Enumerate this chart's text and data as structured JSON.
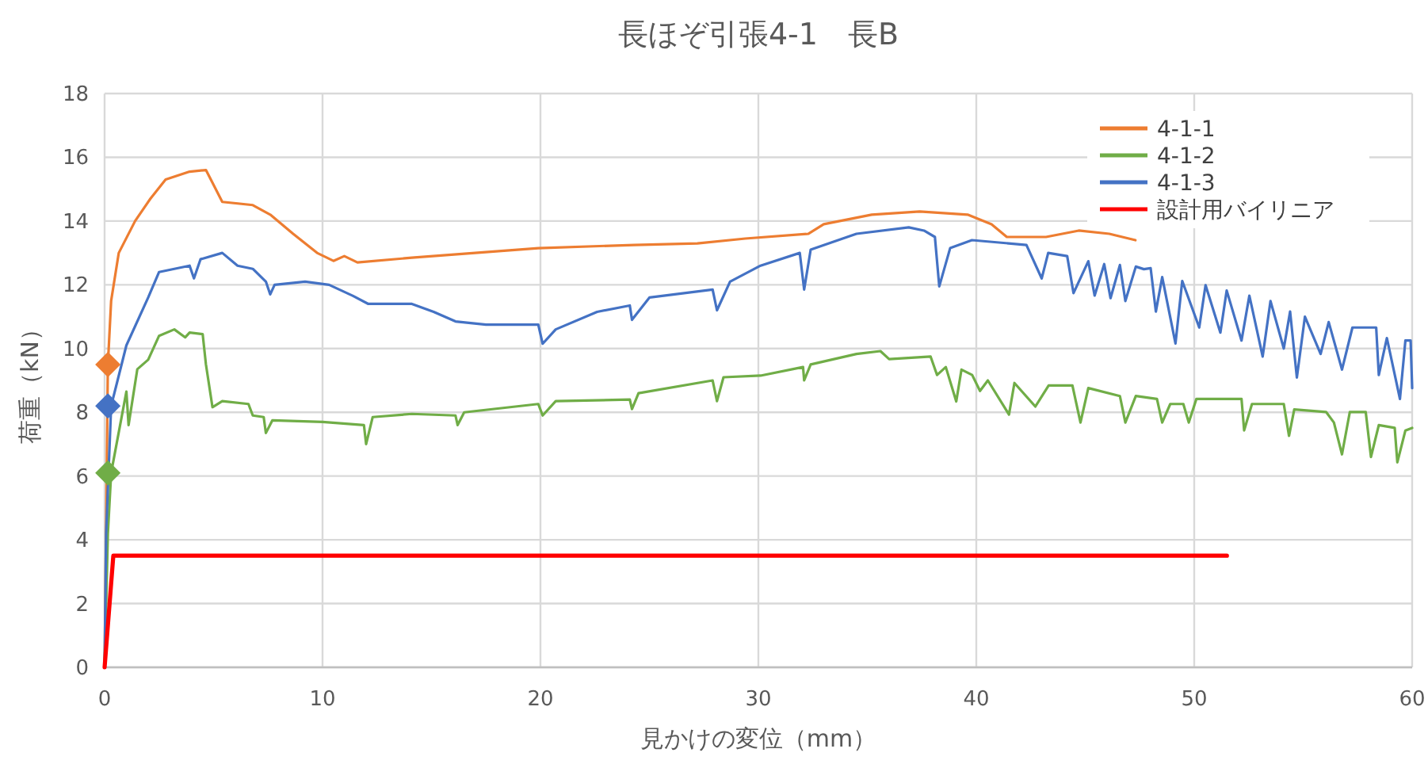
{
  "chart_data": {
    "type": "line",
    "title": "長ほぞ引張4-1　長B",
    "xlabel": "見かけの変位（mm）",
    "ylabel": "荷重（kN）",
    "xlim": [
      0,
      60
    ],
    "ylim": [
      0,
      18
    ],
    "xticks": [
      0,
      10,
      20,
      30,
      40,
      50,
      60
    ],
    "yticks": [
      0,
      2,
      4,
      6,
      8,
      10,
      12,
      14,
      16,
      18
    ],
    "grid": true,
    "legend": "top right",
    "marker": "none",
    "series": [
      {
        "name": "4-1-1",
        "color": "#ed7d31",
        "x": [
          0,
          0.15,
          0.3,
          0.65,
          1.4,
          2.1,
          2.8,
          3.9,
          4.65,
          4.8,
          5.4,
          6.8,
          7.6,
          8.65,
          9.75,
          10.5,
          11,
          11.6,
          14.1,
          17,
          19.9,
          24.3,
          27.2,
          29.4,
          32.3,
          33,
          35.2,
          37.4,
          39.6,
          40.7,
          41.4,
          43.2,
          44.7,
          46.1,
          47.3
        ],
        "values": [
          0,
          9.5,
          11.5,
          13,
          14,
          14.7,
          15.3,
          15.55,
          15.6,
          15.4,
          14.6,
          14.5,
          14.2,
          13.6,
          13,
          12.75,
          12.9,
          12.7,
          12.85,
          13,
          13.15,
          13.25,
          13.3,
          13.45,
          13.6,
          13.9,
          14.2,
          14.3,
          14.2,
          13.9,
          13.5,
          13.5,
          13.7,
          13.6,
          13.4
        ]
      },
      {
        "name": "4-1-2",
        "color": "#70ad47",
        "x": [
          0,
          0.15,
          0.3,
          1,
          1.1,
          1.5,
          2,
          2.5,
          3.2,
          3.7,
          3.9,
          4.5,
          4.65,
          4.95,
          5.4,
          6.6,
          6.8,
          7.3,
          7.4,
          7.7,
          10,
          11.9,
          12,
          12.3,
          14.1,
          16.1,
          16.2,
          16.5,
          19.9,
          20.1,
          20.7,
          24.1,
          24.2,
          24.5,
          27.9,
          28.1,
          28.4,
          30.1,
          32.05,
          32.1,
          32.4,
          34.5,
          35.6,
          36,
          37.9,
          38.2,
          38.6,
          39.08,
          39.32,
          39.81,
          40.17,
          40.53,
          41.5,
          41.75,
          42.71,
          43.32,
          44.41,
          44.78,
          45.14,
          46.59,
          46.84,
          47.32,
          48.29,
          48.53,
          48.9,
          49.5,
          49.75,
          50.1,
          52.17,
          52.29,
          52.65,
          54.11,
          54.35,
          54.59,
          56.05,
          56.41,
          56.78,
          57.14,
          57.87,
          58.11,
          58.47,
          59.2,
          59.32,
          59.69,
          60
        ],
        "values": [
          0,
          4.2,
          6.1,
          8.65,
          7.6,
          9.35,
          9.65,
          10.4,
          10.6,
          10.35,
          10.5,
          10.45,
          9.5,
          8.16,
          8.35,
          8.26,
          7.9,
          7.85,
          7.35,
          7.75,
          7.7,
          7.6,
          7,
          7.85,
          7.95,
          7.9,
          7.6,
          8,
          8.26,
          7.9,
          8.35,
          8.4,
          8.1,
          8.6,
          9,
          8.35,
          9.1,
          9.15,
          9.42,
          9,
          9.5,
          9.83,
          9.92,
          9.67,
          9.75,
          9.17,
          9.42,
          8.34,
          9.34,
          9.17,
          8.67,
          9,
          7.93,
          8.92,
          8.18,
          8.84,
          8.84,
          7.68,
          8.76,
          8.51,
          7.68,
          8.51,
          8.42,
          7.68,
          8.26,
          8.26,
          7.68,
          8.42,
          8.42,
          7.43,
          8.26,
          8.26,
          7.26,
          8.09,
          8.01,
          7.68,
          6.68,
          8.01,
          8.01,
          6.6,
          7.6,
          7.51,
          6.43,
          7.43,
          7.51
        ]
      },
      {
        "name": "4-1-3",
        "color": "#4472c4",
        "x": [
          0,
          0.07,
          0.3,
          1,
          2,
          2.5,
          3.9,
          4.1,
          4.4,
          5.4,
          6.1,
          6.8,
          7.4,
          7.6,
          7.8,
          9.2,
          10.3,
          11.4,
          12.1,
          14.1,
          15.1,
          16.1,
          17.5,
          19.9,
          20.1,
          20.7,
          22.6,
          24.1,
          24.2,
          25,
          27.9,
          28.1,
          28.7,
          30.1,
          31.9,
          32.1,
          32.4,
          34.5,
          36.9,
          37.6,
          38.1,
          38.3,
          38.8,
          39.8,
          42.3,
          43,
          43.3,
          44.17,
          44.46,
          45.14,
          45.43,
          45.87,
          46.16,
          46.59,
          46.84,
          47.32,
          47.69,
          48,
          48.24,
          48.53,
          49.14,
          49.45,
          50.23,
          50.52,
          51.2,
          51.49,
          52.17,
          52.53,
          53.14,
          53.5,
          54.11,
          54.4,
          54.71,
          55.08,
          55.8,
          56.17,
          56.78,
          57.26,
          58.35,
          58.47,
          58.84,
          59.44,
          59.69,
          59.93,
          60
        ],
        "values": [
          0,
          4.2,
          8.2,
          10.1,
          11.6,
          12.4,
          12.6,
          12.2,
          12.8,
          13,
          12.6,
          12.5,
          12.1,
          11.7,
          12,
          12.1,
          12,
          11.65,
          11.4,
          11.4,
          11.15,
          10.85,
          10.75,
          10.75,
          10.15,
          10.6,
          11.15,
          11.35,
          10.9,
          11.6,
          11.85,
          11.2,
          12.1,
          12.6,
          13,
          11.85,
          13.1,
          13.6,
          13.8,
          13.7,
          13.5,
          11.95,
          13.15,
          13.4,
          13.25,
          12.2,
          13,
          12.9,
          11.74,
          12.74,
          11.66,
          12.65,
          11.58,
          12.62,
          11.49,
          12.57,
          12.49,
          12.52,
          11.16,
          12.24,
          10.16,
          12.12,
          10.66,
          11.99,
          10.5,
          11.82,
          10.25,
          11.66,
          9.75,
          11.49,
          10,
          11.16,
          9.09,
          11,
          9.83,
          10.83,
          9.34,
          10.66,
          10.66,
          9.17,
          10.33,
          8.42,
          10.25,
          10.25,
          8.76
        ]
      },
      {
        "name": "設計用バイリニア",
        "color": "#ff0000",
        "x": [
          0,
          0.4,
          51.5
        ],
        "values": [
          0,
          3.5,
          3.5
        ]
      },
      {
        "type": "scatter",
        "marker": "diamond",
        "x": [
          0.15,
          0.15,
          0.15
        ],
        "values": [
          9.5,
          8.2,
          6.1
        ],
        "colors": [
          "#ed7d31",
          "#4472c4",
          "#70ad47"
        ]
      }
    ]
  }
}
